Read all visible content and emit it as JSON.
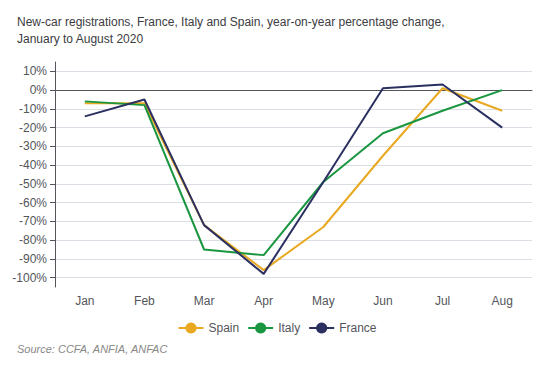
{
  "chart_data": {
    "type": "line",
    "title": "New-car registrations, France, Italy and Spain, year-on-year percentage change,\nJanuary to August 2020",
    "source": "Source: CCFA, ANFIA, ANFAC",
    "categories": [
      "Jan",
      "Feb",
      "Mar",
      "Apr",
      "May",
      "Jun",
      "Jul",
      "Aug"
    ],
    "series": [
      {
        "name": "Spain",
        "color": "#e8a820",
        "values": [
          -7,
          -7,
          -72,
          -96,
          -73,
          -35,
          1,
          -11
        ]
      },
      {
        "name": "Italy",
        "color": "#1a9640",
        "values": [
          -6,
          -8,
          -85,
          -88,
          -49,
          -23,
          -11,
          0
        ]
      },
      {
        "name": "France",
        "color": "#2b3060",
        "values": [
          -14,
          -5,
          -72,
          -98,
          -49,
          1,
          3,
          -20
        ]
      }
    ],
    "ylim": [
      -105,
      15
    ],
    "yticks": [
      {
        "value": 10,
        "label": "10%"
      },
      {
        "value": 0,
        "label": "0%"
      },
      {
        "value": -10,
        "label": "-10%"
      },
      {
        "value": -20,
        "label": "-20%"
      },
      {
        "value": -30,
        "label": "-30%"
      },
      {
        "value": -40,
        "label": "-40%"
      },
      {
        "value": -50,
        "label": "-50%"
      },
      {
        "value": -60,
        "label": "-60%"
      },
      {
        "value": -70,
        "label": "-70%"
      },
      {
        "value": -80,
        "label": "-80%"
      },
      {
        "value": -90,
        "label": "-90%"
      },
      {
        "value": -100,
        "label": "-100%"
      }
    ],
    "grid": true,
    "legend": "bottom"
  }
}
